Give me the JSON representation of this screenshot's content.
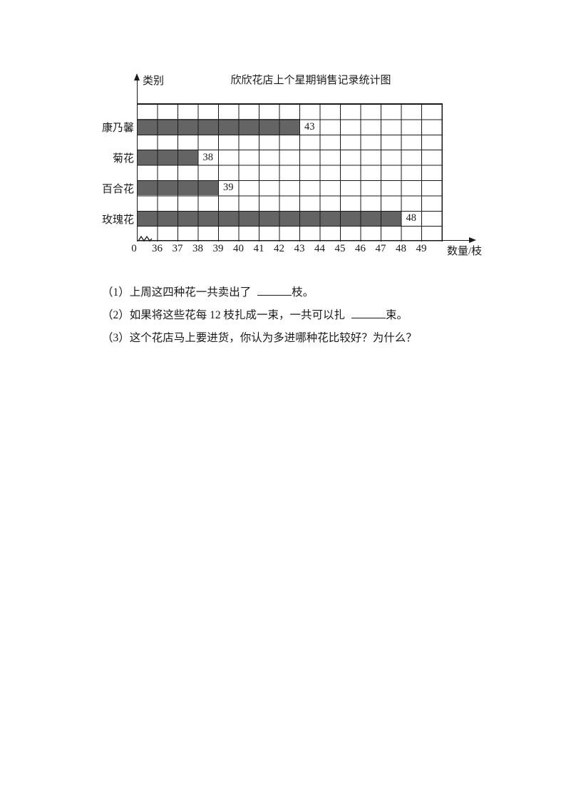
{
  "chart_data": {
    "type": "bar",
    "orientation": "horizontal",
    "title": "欣欣花店上个星期销售记录统计图",
    "ylabel": "类别",
    "xlabel": "数量/枝",
    "categories": [
      "康乃馨",
      "菊花",
      "百合花",
      "玫瑰花"
    ],
    "values": [
      43,
      38,
      39,
      48
    ],
    "xticks": [
      "0",
      "36",
      "37",
      "38",
      "39",
      "40",
      "41",
      "42",
      "43",
      "44",
      "45",
      "46",
      "47",
      "48",
      "49"
    ],
    "axis_break_between": [
      "0",
      "36"
    ],
    "xlim": [
      0,
      50
    ],
    "units_per_cell_after_break": 1,
    "grid": true,
    "legend": "none",
    "bar_color": "#646464",
    "line_color": "#1a1a1a"
  },
  "questions": {
    "q1": {
      "prefix": "（1）上周这四种花一共卖出了",
      "suffix": "枝。"
    },
    "q2": {
      "prefix": "（2）如果将这些花每 12 枝扎成一束，一共可以扎",
      "suffix": "束。"
    },
    "q3": {
      "text": "（3）这个花店马上要进货，你认为多进哪种花比较好？为什么？"
    }
  }
}
